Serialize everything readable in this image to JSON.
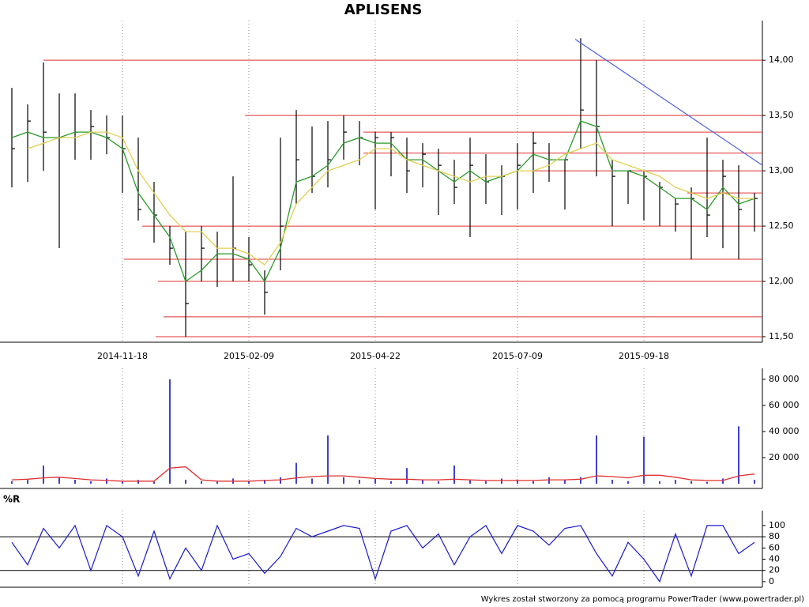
{
  "chart_data": [
    {
      "type": "hlc",
      "title": "APLISENS",
      "categories": [
        null,
        null,
        null,
        null,
        null,
        null,
        null,
        "2014-11-18",
        null,
        null,
        null,
        null,
        null,
        null,
        null,
        "2015-02-09",
        null,
        null,
        null,
        null,
        null,
        null,
        null,
        "2015-04-22",
        null,
        null,
        null,
        null,
        null,
        null,
        null,
        null,
        "2015-07-09",
        null,
        null,
        null,
        null,
        null,
        null,
        null,
        "2015-09-18",
        null,
        null,
        null,
        null,
        null,
        null,
        null
      ],
      "high": [
        13.75,
        13.6,
        13.98,
        13.7,
        13.7,
        13.55,
        13.5,
        13.5,
        13.3,
        12.9,
        12.5,
        12.45,
        12.5,
        12.45,
        12.95,
        12.4,
        12.1,
        13.3,
        13.55,
        13.4,
        13.45,
        13.5,
        13.45,
        13.35,
        13.35,
        13.3,
        13.25,
        13.2,
        13.1,
        13.3,
        13.15,
        13.05,
        13.25,
        13.35,
        13.25,
        13.1,
        14.2,
        14.0,
        13.1,
        13.0,
        13.0,
        12.9,
        12.75,
        12.85,
        13.3,
        13.1,
        13.05,
        12.8
      ],
      "low": [
        12.85,
        12.9,
        13.0,
        12.3,
        13.1,
        13.1,
        13.15,
        12.8,
        12.55,
        12.35,
        12.15,
        11.5,
        12.0,
        11.95,
        12.0,
        12.0,
        11.7,
        12.1,
        12.7,
        12.8,
        12.85,
        13.1,
        13.05,
        12.65,
        12.95,
        12.8,
        12.85,
        12.6,
        12.7,
        12.4,
        12.7,
        12.6,
        12.65,
        12.8,
        12.9,
        12.65,
        13.2,
        12.95,
        12.5,
        12.7,
        12.55,
        12.5,
        12.45,
        12.2,
        12.4,
        12.3,
        12.2,
        12.45
      ],
      "close": [
        13.2,
        13.45,
        13.35,
        13.3,
        13.35,
        13.4,
        13.3,
        13.2,
        12.65,
        12.6,
        12.3,
        11.8,
        12.3,
        12.25,
        12.3,
        12.15,
        11.9,
        12.5,
        13.1,
        12.95,
        13.1,
        13.35,
        13.3,
        13.3,
        13.3,
        13.0,
        13.15,
        13.05,
        12.85,
        13.05,
        12.9,
        12.95,
        13.05,
        13.25,
        13.1,
        13.1,
        13.55,
        13.4,
        12.95,
        13.0,
        12.95,
        12.85,
        12.7,
        12.75,
        12.6,
        12.95,
        12.65,
        12.75
      ],
      "color": "#000000",
      "lines": [
        {
          "color": "#2a9a2a",
          "values": [
            13.3,
            13.35,
            13.3,
            13.3,
            13.35,
            13.35,
            13.3,
            13.2,
            12.8,
            12.6,
            12.4,
            12.0,
            12.1,
            12.25,
            12.25,
            12.2,
            12.0,
            12.3,
            12.9,
            12.95,
            13.05,
            13.25,
            13.3,
            13.25,
            13.25,
            13.1,
            13.1,
            13.0,
            12.9,
            13.0,
            12.9,
            12.95,
            13.0,
            13.15,
            13.1,
            13.1,
            13.45,
            13.4,
            13.0,
            13.0,
            12.95,
            12.85,
            12.75,
            12.75,
            12.65,
            12.85,
            12.7,
            12.75
          ]
        },
        {
          "color": "#e0d050",
          "values": [
            null,
            13.2,
            13.25,
            13.3,
            13.3,
            13.35,
            13.35,
            13.3,
            13.0,
            12.8,
            12.6,
            12.45,
            12.45,
            12.3,
            12.3,
            12.25,
            12.15,
            12.35,
            12.7,
            12.85,
            13.0,
            13.05,
            13.1,
            13.2,
            13.2,
            13.1,
            13.05,
            13.0,
            12.95,
            12.9,
            12.95,
            12.95,
            13.0,
            13.0,
            13.05,
            13.15,
            13.2,
            13.25,
            13.1,
            13.05,
            13.0,
            12.95,
            12.85,
            12.8,
            12.75,
            12.8,
            12.75,
            12.75
          ]
        }
      ],
      "levels": [
        {
          "value": 14.0,
          "from": 2
        },
        {
          "value": 13.5,
          "from": 14.75
        },
        {
          "value": 13.35,
          "from": 22.25
        },
        {
          "value": 13.16,
          "from": 22.25
        },
        {
          "value": 13.0,
          "from": 32.75
        },
        {
          "value": 12.8,
          "from": 42.75
        },
        {
          "value": 12.5,
          "from": 8.25
        },
        {
          "value": 12.2,
          "from": 7.1
        },
        {
          "value": 12.0,
          "from": 9.25
        },
        {
          "value": 11.68,
          "from": 9.6
        },
        {
          "value": 11.5,
          "from": 9.1
        }
      ],
      "level_color": "#e03030",
      "trendline": {
        "x": [
          35.65,
          47.5
        ],
        "y": [
          14.19,
          13.05
        ],
        "color": "#5060e0"
      },
      "ylim": [
        11.45,
        14.33
      ],
      "yticks": [
        {
          "value": 11.5,
          "label": "11,50"
        },
        {
          "value": 12.0,
          "label": "12,00"
        },
        {
          "value": 12.5,
          "label": "12,50"
        },
        {
          "value": 13.0,
          "label": "13,00"
        },
        {
          "value": 13.5,
          "label": "13,50"
        },
        {
          "value": 14.0,
          "label": "14,00"
        }
      ],
      "xgrid": true
    },
    {
      "type": "bar",
      "values": [
        2000,
        3000,
        14000,
        5000,
        3000,
        2000,
        4000,
        2000,
        3000,
        1500,
        80000,
        3000,
        2000,
        1500,
        4000,
        2000,
        3000,
        5000,
        16000,
        4000,
        37000,
        5000,
        3000,
        4000,
        2000,
        12000,
        3000,
        2000,
        14000,
        3000,
        2000,
        4000,
        3000,
        2000,
        5000,
        3000,
        5000,
        37000,
        3000,
        2000,
        36000,
        2000,
        3000,
        2000,
        1500,
        4000,
        44000,
        3000
      ],
      "color": "#0000c0",
      "lines": [
        {
          "color": "#e03030",
          "values": [
            3000,
            3500,
            4500,
            5000,
            4000,
            3000,
            2500,
            2000,
            2000,
            2000,
            12000,
            13000,
            3000,
            2000,
            2000,
            2000,
            2500,
            3000,
            4500,
            5500,
            6000,
            6000,
            5000,
            4000,
            3500,
            3500,
            3000,
            3000,
            3500,
            3000,
            2500,
            2500,
            2500,
            2500,
            3000,
            3000,
            3500,
            6000,
            5500,
            4500,
            6500,
            6500,
            5000,
            3000,
            2500,
            2500,
            6000,
            7500
          ]
        }
      ],
      "ylim": [
        -3600,
        86000
      ],
      "yticks": [
        {
          "value": 20000,
          "label": "20 000"
        },
        {
          "value": 40000,
          "label": "40 000"
        },
        {
          "value": 60000,
          "label": "60 000"
        },
        {
          "value": 80000,
          "label": "80 000"
        }
      ]
    },
    {
      "type": "line",
      "title": "%R",
      "values": [
        70,
        30,
        95,
        60,
        100,
        20,
        100,
        80,
        10,
        90,
        5,
        60,
        20,
        100,
        40,
        50,
        15,
        45,
        95,
        80,
        90,
        100,
        95,
        5,
        90,
        100,
        60,
        85,
        30,
        80,
        100,
        50,
        100,
        90,
        65,
        95,
        100,
        50,
        10,
        70,
        40,
        0,
        85,
        10,
        100,
        100,
        50,
        70
      ],
      "color": "#1a1ad0",
      "reference_lines": [
        20,
        80
      ],
      "ylim": [
        -10,
        121
      ],
      "yticks": [
        0,
        20,
        40,
        60,
        80,
        100
      ]
    }
  ],
  "footer": "Wykres został stworzony za pomocą programu PowerTrader (www.powertrader.pl)"
}
